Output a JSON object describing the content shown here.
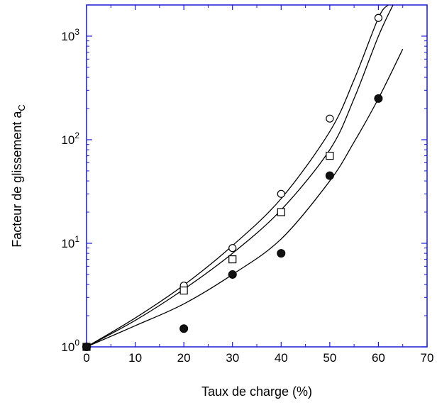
{
  "chart_data": {
    "type": "scatter",
    "title": "",
    "xlabel": "Taux  de charge (%)",
    "ylabel_main": "Facteur de glissement a",
    "ylabel_sub": "C",
    "xlim": [
      0,
      70
    ],
    "ylim": [
      1,
      2000
    ],
    "yscale": "log",
    "x_ticks": [
      0,
      10,
      20,
      30,
      40,
      50,
      60,
      70
    ],
    "x_tick_labels": [
      "0",
      "10",
      "20",
      "30",
      "40",
      "50",
      "60",
      "70"
    ],
    "y_ticks": [
      {
        "value": 1,
        "base": "10",
        "exp": "0"
      },
      {
        "value": 10,
        "base": "10",
        "exp": "1"
      },
      {
        "value": 100,
        "base": "10",
        "exp": "2"
      },
      {
        "value": 1000,
        "base": "10",
        "exp": "3"
      }
    ],
    "grid": false,
    "legend": "none",
    "axis_color": "#1a1ad6",
    "series": [
      {
        "marker": "open-circle",
        "points": [
          [
            0,
            1.0
          ],
          [
            20,
            3.9
          ],
          [
            30,
            9.0
          ],
          [
            40,
            30
          ],
          [
            50,
            160
          ],
          [
            60,
            1500
          ]
        ],
        "fit": [
          [
            0,
            1.0
          ],
          [
            10,
            1.9
          ],
          [
            20,
            3.95
          ],
          [
            30,
            9.5
          ],
          [
            40,
            27
          ],
          [
            50,
            120
          ],
          [
            55,
            380
          ],
          [
            60,
            1500
          ],
          [
            62,
            2000
          ]
        ]
      },
      {
        "marker": "open-square",
        "points": [
          [
            0,
            1.0
          ],
          [
            20,
            3.5
          ],
          [
            30,
            7.0
          ],
          [
            40,
            20
          ],
          [
            50,
            70
          ]
        ],
        "fit": [
          [
            0,
            1.0
          ],
          [
            10,
            1.8
          ],
          [
            20,
            3.6
          ],
          [
            30,
            8.0
          ],
          [
            40,
            21
          ],
          [
            50,
            80
          ],
          [
            55,
            250
          ],
          [
            60,
            1000
          ],
          [
            63,
            2000
          ]
        ]
      },
      {
        "marker": "filled-circle",
        "points": [
          [
            0,
            1.0
          ],
          [
            20,
            1.5
          ],
          [
            30,
            5.0
          ],
          [
            40,
            8.0
          ],
          [
            50,
            45
          ],
          [
            60,
            250
          ]
        ],
        "fit": [
          [
            0,
            1.0
          ],
          [
            10,
            1.6
          ],
          [
            20,
            2.6
          ],
          [
            30,
            5.0
          ],
          [
            40,
            11
          ],
          [
            50,
            40
          ],
          [
            55,
            95
          ],
          [
            60,
            250
          ],
          [
            65,
            750
          ]
        ]
      }
    ]
  }
}
